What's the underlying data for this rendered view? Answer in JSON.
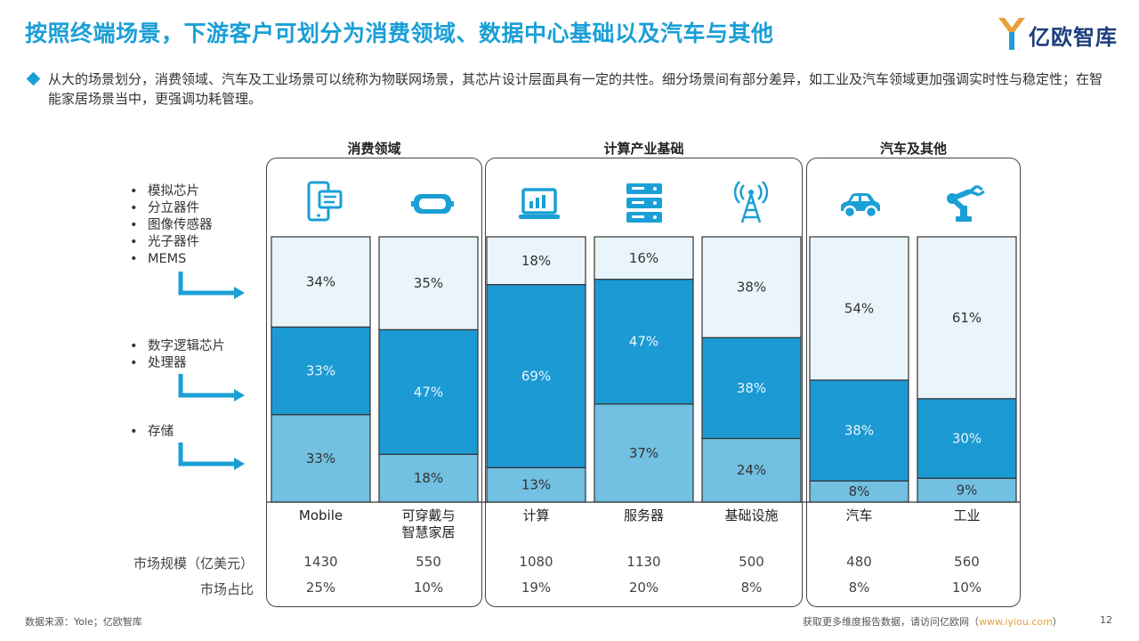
{
  "header": {
    "title": "按照终端场景，下游客户可划分为消费领域、数据中心基础以及汽车与其他",
    "logo_text": "亿欧智库"
  },
  "summary": "从大的场景划分，消费领域、汽车及工业场景可以统称为物联网场景，其芯片设计层面具有一定的共性。细分场景间有部分差异，如工业及汽车领域更加强调实时性与稳定性；在智能家居场景当中，更强调功耗管理。",
  "groups": [
    {
      "label": "消费领域"
    },
    {
      "label": "计算产业基础"
    },
    {
      "label": "汽车及其他"
    }
  ],
  "left_legend": {
    "group1": [
      "模拟芯片",
      "分立器件",
      "图像传感器",
      "光子器件",
      "MEMS"
    ],
    "group2": [
      "数字逻辑芯片",
      "处理器"
    ],
    "group3": [
      "存储"
    ]
  },
  "chart_data": {
    "type": "bar",
    "stacked": true,
    "percent": true,
    "categories": [
      "Mobile",
      "可穿戴与\n智慧家居",
      "计算",
      "服务器",
      "基础设施",
      "汽车",
      "工业"
    ],
    "series": [
      {
        "name": "存储",
        "color": "#72c0e2",
        "values": [
          33,
          18,
          13,
          37,
          24,
          8,
          9
        ]
      },
      {
        "name": "数字逻辑芯片 / 处理器",
        "color": "#1b9ad4",
        "values": [
          33,
          47,
          69,
          47,
          38,
          38,
          30
        ]
      },
      {
        "name": "模拟芯片 / 分立器件 / 图像传感器 / 光子器件 / MEMS",
        "color": "#eaf5fb",
        "values": [
          34,
          35,
          18,
          16,
          38,
          54,
          61
        ]
      }
    ],
    "ylim": [
      0,
      100
    ]
  },
  "table": {
    "row1_label": "市场规模（亿美元）",
    "row1_values": [
      "1430",
      "550",
      "1080",
      "1130",
      "500",
      "480",
      "560"
    ],
    "row2_label": "市场占比",
    "row2_values": [
      "25%",
      "10%",
      "19%",
      "20%",
      "8%",
      "8%",
      "10%"
    ]
  },
  "footer": {
    "source": "数据来源：Yole；亿欧智库",
    "more_prefix": "获取更多维度报告数据，请访问亿欧网（",
    "link": "www.iyiou.com",
    "more_suffix": "）",
    "page": "12"
  },
  "icons": [
    "smartphone-icon",
    "vr-goggles-icon",
    "laptop-chart-icon",
    "server-icon",
    "antenna-tower-icon",
    "car-icon",
    "robot-arm-icon"
  ],
  "colors": {
    "accent": "#1a9fd6",
    "dark": "#1b9ad4",
    "light": "#72c0e2",
    "pale": "#eaf5fb"
  }
}
